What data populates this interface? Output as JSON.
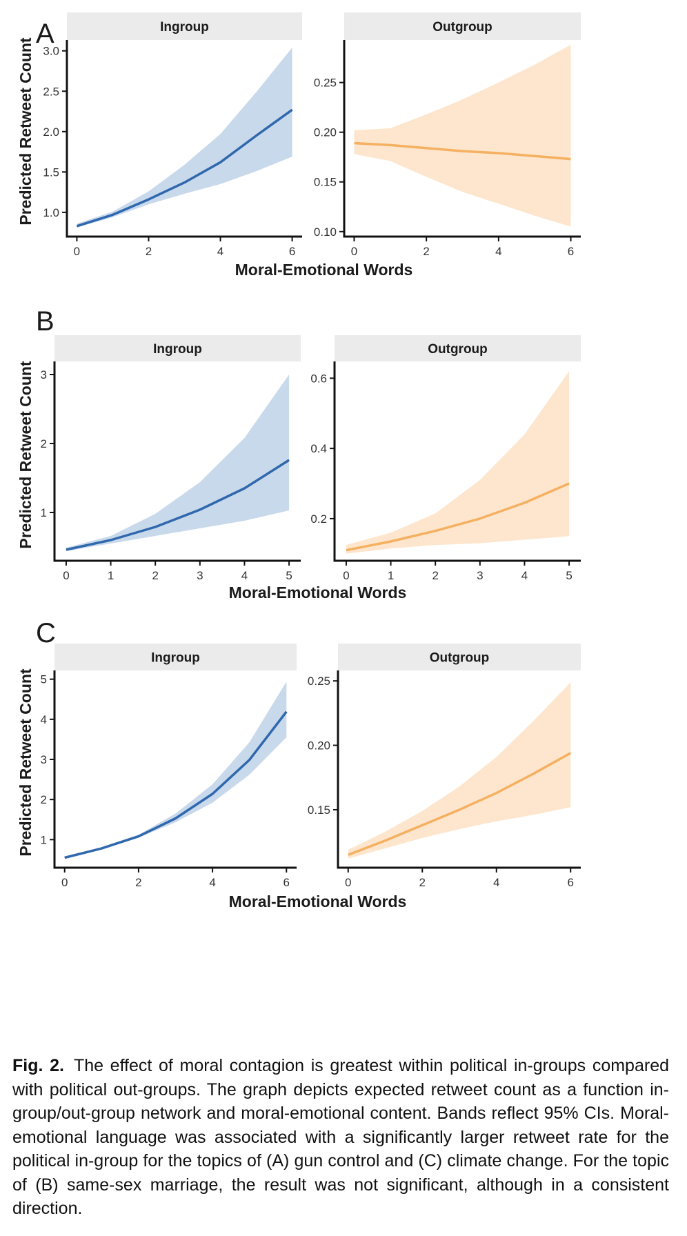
{
  "figure": {
    "xlabel": "Moral-Emotional Words",
    "ylabel": "Predicted Retweet Count",
    "colors": {
      "ingroup_line": "#2f68ad",
      "ingroup_band": "#c9d9ec",
      "outgroup_line": "#f5b061",
      "outgroup_band": "#fde6cd",
      "strip_bg": "#ebebeb"
    },
    "rows": [
      {
        "label": "A",
        "panels": [
          {
            "strip": "Ingroup",
            "group": "ingroup",
            "x_ticks": [
              "0",
              "2",
              "4",
              "6"
            ],
            "y_ticks": [
              "1.0",
              "1.5",
              "2.0",
              "2.5",
              "3.0"
            ]
          },
          {
            "strip": "Outgroup",
            "group": "outgroup",
            "x_ticks": [
              "0",
              "2",
              "4",
              "6"
            ],
            "y_ticks": [
              "0.10",
              "0.15",
              "0.20",
              "0.25"
            ]
          }
        ]
      },
      {
        "label": "B",
        "panels": [
          {
            "strip": "Ingroup",
            "group": "ingroup",
            "x_ticks": [
              "0",
              "1",
              "2",
              "3",
              "4",
              "5"
            ],
            "y_ticks": [
              "1",
              "2",
              "3"
            ]
          },
          {
            "strip": "Outgroup",
            "group": "outgroup",
            "x_ticks": [
              "0",
              "1",
              "2",
              "3",
              "4",
              "5"
            ],
            "y_ticks": [
              "0.2",
              "0.4",
              "0.6"
            ]
          }
        ]
      },
      {
        "label": "C",
        "panels": [
          {
            "strip": "Ingroup",
            "group": "ingroup",
            "x_ticks": [
              "0",
              "2",
              "4",
              "6"
            ],
            "y_ticks": [
              "1",
              "2",
              "3",
              "4",
              "5"
            ]
          },
          {
            "strip": "Outgroup",
            "group": "outgroup",
            "x_ticks": [
              "0",
              "2",
              "4",
              "6"
            ],
            "y_ticks": [
              "0.15",
              "0.20",
              "0.25"
            ]
          }
        ]
      }
    ]
  },
  "chart_data": [
    {
      "type": "line",
      "panel": "A",
      "facet": "Ingroup",
      "band": "95% CI",
      "xlim": [
        -0.2,
        6.2
      ],
      "ylim": [
        0.7,
        3.1
      ],
      "series": [
        {
          "x": [
            0,
            1,
            2,
            3,
            4,
            5,
            6
          ],
          "values": [
            0.83,
            0.97,
            1.16,
            1.37,
            1.62,
            1.95,
            2.27
          ],
          "lower": [
            0.81,
            0.94,
            1.1,
            1.23,
            1.35,
            1.51,
            1.69
          ],
          "upper": [
            0.86,
            1.01,
            1.26,
            1.59,
            1.97,
            2.49,
            3.04
          ]
        }
      ]
    },
    {
      "type": "line",
      "panel": "A",
      "facet": "Outgroup",
      "band": "95% CI",
      "xlim": [
        -0.2,
        6.2
      ],
      "ylim": [
        0.095,
        0.29
      ],
      "series": [
        {
          "x": [
            0,
            1,
            2,
            3,
            4,
            5,
            6
          ],
          "values": [
            0.189,
            0.187,
            0.184,
            0.181,
            0.179,
            0.176,
            0.173
          ],
          "lower": [
            0.178,
            0.171,
            0.155,
            0.14,
            0.128,
            0.116,
            0.105
          ],
          "upper": [
            0.202,
            0.204,
            0.218,
            0.233,
            0.25,
            0.268,
            0.288
          ]
        }
      ]
    },
    {
      "type": "line",
      "panel": "B",
      "facet": "Ingroup",
      "band": "95% CI",
      "xlim": [
        -0.2,
        5.2
      ],
      "ylim": [
        0.3,
        3.15
      ],
      "series": [
        {
          "x": [
            0,
            1,
            2,
            3,
            4,
            5
          ],
          "values": [
            0.46,
            0.6,
            0.79,
            1.04,
            1.35,
            1.76
          ],
          "lower": [
            0.44,
            0.55,
            0.66,
            0.77,
            0.88,
            1.03
          ],
          "upper": [
            0.49,
            0.66,
            0.98,
            1.44,
            2.08,
            3.0
          ]
        }
      ]
    },
    {
      "type": "line",
      "panel": "B",
      "facet": "Outgroup",
      "band": "95% CI",
      "xlim": [
        -0.2,
        5.2
      ],
      "ylim": [
        0.08,
        0.64
      ],
      "series": [
        {
          "x": [
            0,
            1,
            2,
            3,
            4,
            5
          ],
          "values": [
            0.11,
            0.135,
            0.165,
            0.2,
            0.245,
            0.3
          ],
          "lower": [
            0.1,
            0.115,
            0.125,
            0.13,
            0.14,
            0.15
          ],
          "upper": [
            0.125,
            0.16,
            0.215,
            0.31,
            0.44,
            0.62
          ]
        }
      ]
    },
    {
      "type": "line",
      "panel": "C",
      "facet": "Ingroup",
      "band": "95% CI",
      "xlim": [
        -0.2,
        6.2
      ],
      "ylim": [
        0.3,
        5.15
      ],
      "series": [
        {
          "x": [
            0,
            1,
            2,
            3,
            4,
            5,
            6
          ],
          "values": [
            0.55,
            0.78,
            1.08,
            1.53,
            2.14,
            2.99,
            4.19
          ],
          "lower": [
            0.54,
            0.76,
            1.05,
            1.43,
            1.92,
            2.62,
            3.55
          ],
          "upper": [
            0.57,
            0.81,
            1.12,
            1.65,
            2.38,
            3.43,
            4.94
          ]
        }
      ]
    },
    {
      "type": "line",
      "panel": "C",
      "facet": "Outgroup",
      "band": "95% CI",
      "xlim": [
        -0.2,
        6.2
      ],
      "ylim": [
        0.105,
        0.256
      ],
      "series": [
        {
          "x": [
            0,
            1,
            2,
            3,
            4,
            5,
            6
          ],
          "values": [
            0.115,
            0.126,
            0.138,
            0.15,
            0.163,
            0.178,
            0.194
          ],
          "lower": [
            0.112,
            0.12,
            0.128,
            0.135,
            0.141,
            0.146,
            0.152
          ],
          "upper": [
            0.119,
            0.133,
            0.149,
            0.168,
            0.191,
            0.219,
            0.249
          ]
        }
      ]
    }
  ],
  "caption": {
    "label": "Fig. 2.",
    "text": "The effect of moral contagion is greatest within political in-groups compared with political out-groups. The graph depicts expected retweet count as a function in-group/out-group network and moral-emotional content. Bands reflect 95% CIs. Moral-emotional language was associated with a significantly larger retweet rate for the political in-group for the topics of (A) gun control and (C) climate change. For the topic of (B) same-sex marriage, the result was not significant, although in a consistent direction."
  }
}
